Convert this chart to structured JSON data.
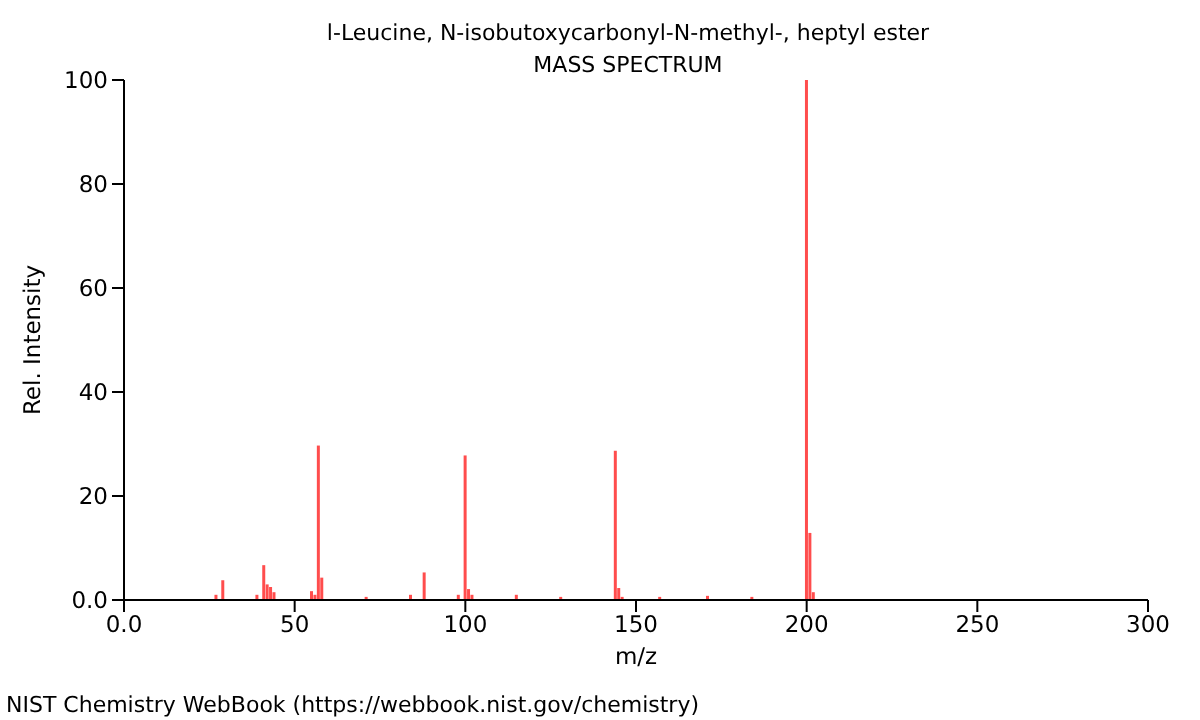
{
  "chart_data": {
    "type": "bar",
    "title": "l-Leucine, N-isobutoxycarbonyl-N-methyl-, heptyl ester",
    "subtitle": "MASS SPECTRUM",
    "xlabel": "m/z",
    "ylabel": "Rel. Intensity",
    "x": [
      27,
      29,
      39,
      41,
      42,
      43,
      44,
      55,
      56,
      57,
      58,
      71,
      84,
      88,
      98,
      100,
      101,
      102,
      115,
      128,
      144,
      145,
      146,
      157,
      171,
      184,
      200,
      201,
      202
    ],
    "values": [
      1,
      3.8,
      1,
      6.7,
      3,
      2.5,
      1.5,
      1.7,
      1,
      29.7,
      4.3,
      0.6,
      1,
      5.3,
      1,
      27.8,
      2.1,
      1,
      1,
      0.6,
      28.7,
      2.3,
      0.6,
      0.6,
      0.8,
      0.6,
      100,
      12.9,
      1.5
    ],
    "color": "#ff4d4d",
    "xlim": [
      0,
      300
    ],
    "xticks": [
      {
        "value": 0,
        "label": "0.0"
      },
      50,
      100,
      150,
      200,
      250,
      300
    ],
    "ylim": [
      0,
      100
    ],
    "yticks": [
      {
        "value": 0,
        "label": "0.0"
      },
      20,
      40,
      60,
      80,
      100
    ],
    "grid": false,
    "legend": false,
    "annotations": [
      "NIST Chemistry WebBook (https://webbook.nist.gov/chemistry)"
    ]
  }
}
